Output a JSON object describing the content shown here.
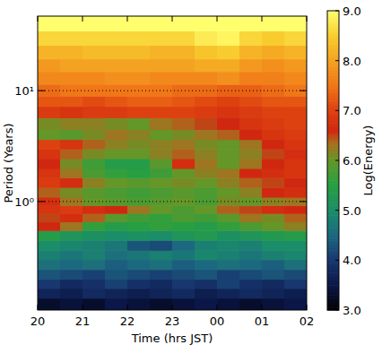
{
  "chart_data": {
    "type": "heatmap",
    "x_label": "Time (hrs JST)",
    "y_label": "Period (Years)",
    "x": [
      20.25,
      20.75,
      21.25,
      21.75,
      22.25,
      22.75,
      23.25,
      23.75,
      24.25,
      24.75,
      25.25,
      25.75
    ],
    "y": [
      0.12,
      0.15,
      0.18,
      0.22,
      0.27,
      0.33,
      0.4,
      0.5,
      0.6,
      0.72,
      0.85,
      1.0,
      1.2,
      1.5,
      1.8,
      2.2,
      2.7,
      3.3,
      4,
      5,
      6.5,
      8,
      10,
      13,
      17,
      22,
      30,
      40
    ],
    "values": [
      [
        3.3,
        3.4,
        3.3,
        3.5,
        3.4,
        3.3,
        3.4,
        3.5,
        3.4,
        3.3,
        3.4,
        3.5
      ],
      [
        3.7,
        3.6,
        3.8,
        3.7,
        3.6,
        3.7,
        3.8,
        3.6,
        3.7,
        3.8,
        3.7,
        3.6
      ],
      [
        4.0,
        3.8,
        3.9,
        4.1,
        3.9,
        3.8,
        4.0,
        3.9,
        4.1,
        3.9,
        3.8,
        4.0
      ],
      [
        4.3,
        4.2,
        4.1,
        4.3,
        4.2,
        4.1,
        4.2,
        4.3,
        4.1,
        4.2,
        4.3,
        4.2
      ],
      [
        4.6,
        4.5,
        4.6,
        4.4,
        4.5,
        4.6,
        4.4,
        4.5,
        4.6,
        4.5,
        4.4,
        4.6
      ],
      [
        4.8,
        4.7,
        4.8,
        4.6,
        4.7,
        4.8,
        4.7,
        4.9,
        4.8,
        4.7,
        4.8,
        4.9
      ],
      [
        5.0,
        4.9,
        4.8,
        4.7,
        4.3,
        4.2,
        4.5,
        4.8,
        4.9,
        4.8,
        5.0,
        5.0
      ],
      [
        5.4,
        5.2,
        5.1,
        5.0,
        5.1,
        5.0,
        5.2,
        5.3,
        5.1,
        5.2,
        5.3,
        5.4
      ],
      [
        6.6,
        6.3,
        5.6,
        5.4,
        5.5,
        5.6,
        5.5,
        5.4,
        5.6,
        5.8,
        6.0,
        6.2
      ],
      [
        6.5,
        6.7,
        6.4,
        5.9,
        5.7,
        5.6,
        5.8,
        5.7,
        5.9,
        6.3,
        6.1,
        6.4
      ],
      [
        6.8,
        6.9,
        6.7,
        6.6,
        6.3,
        6.0,
        5.8,
        6.0,
        6.4,
        6.5,
        6.7,
        6.6
      ],
      [
        6.7,
        6.3,
        6.0,
        5.9,
        5.8,
        5.9,
        6.0,
        5.8,
        6.1,
        6.0,
        6.2,
        6.3
      ],
      [
        6.4,
        6.1,
        5.9,
        5.8,
        5.7,
        5.8,
        5.9,
        5.8,
        6.0,
        6.2,
        6.6,
        6.7
      ],
      [
        6.9,
        6.7,
        6.2,
        6.0,
        5.9,
        6.0,
        6.1,
        6.0,
        6.2,
        6.4,
        6.5,
        6.6
      ],
      [
        6.8,
        6.3,
        5.8,
        5.6,
        5.5,
        5.7,
        6.0,
        6.2,
        6.3,
        6.6,
        6.7,
        6.8
      ],
      [
        6.6,
        6.1,
        5.7,
        5.4,
        5.4,
        5.9,
        6.7,
        6.3,
        6.0,
        6.3,
        6.6,
        6.8
      ],
      [
        6.8,
        6.4,
        6.1,
        6.0,
        6.0,
        6.2,
        6.4,
        6.2,
        6.0,
        6.2,
        6.5,
        6.7
      ],
      [
        7.0,
        6.8,
        6.4,
        6.2,
        6.1,
        6.2,
        6.3,
        6.1,
        6.0,
        6.3,
        6.6,
        6.8
      ],
      [
        6.0,
        5.9,
        6.1,
        6.3,
        6.2,
        6.0,
        6.1,
        6.3,
        6.4,
        6.6,
        6.8,
        6.9
      ],
      [
        6.1,
        6.2,
        6.2,
        6.1,
        6.0,
        6.3,
        6.4,
        6.5,
        6.6,
        6.8,
        6.9,
        7.0
      ],
      [
        6.9,
        6.8,
        6.9,
        6.9,
        7.0,
        7.0,
        7.0,
        6.9,
        6.8,
        6.9,
        7.0,
        7.0
      ],
      [
        7.2,
        7.2,
        7.1,
        7.2,
        7.3,
        7.3,
        7.2,
        7.1,
        7.0,
        7.1,
        7.2,
        7.2
      ],
      [
        7.4,
        7.5,
        7.5,
        7.5,
        7.5,
        7.5,
        7.4,
        7.4,
        7.3,
        7.3,
        7.4,
        7.5
      ],
      [
        7.7,
        7.7,
        7.7,
        7.8,
        7.8,
        7.7,
        7.7,
        7.7,
        7.8,
        7.6,
        7.6,
        7.7
      ],
      [
        7.9,
        8.0,
        8.0,
        8.0,
        8.0,
        8.0,
        8.0,
        8.1,
        8.1,
        7.9,
        7.8,
        7.9
      ],
      [
        8.2,
        8.2,
        8.3,
        8.3,
        8.3,
        8.2,
        8.2,
        8.4,
        8.5,
        8.2,
        8.1,
        8.2
      ],
      [
        8.6,
        8.6,
        8.6,
        8.6,
        8.6,
        8.6,
        8.6,
        8.8,
        8.9,
        8.6,
        8.5,
        8.6
      ],
      [
        9.0,
        9.0,
        9.0,
        9.0,
        9.0,
        9.0,
        9.0,
        9.0,
        9.0,
        9.0,
        9.0,
        9.0
      ]
    ],
    "xlim": [
      20,
      26
    ],
    "xticks": [
      20,
      21,
      22,
      23,
      {
        "value": 24,
        "label": "00"
      },
      {
        "value": 25,
        "label": "01"
      },
      {
        "value": 26,
        "label": "02"
      }
    ],
    "ylim": [
      0.105,
      47
    ],
    "yticks": [
      {
        "value": 1,
        "label": "10⁰"
      },
      {
        "value": 10,
        "label": "10¹"
      }
    ],
    "log": "y",
    "grid": "y",
    "colorbar": {
      "title": "Log(Energy)",
      "lim": [
        3,
        9
      ],
      "ticks": [
        {
          "value": 3,
          "label": "3.0"
        },
        {
          "value": 4,
          "label": "4.0"
        },
        {
          "value": 5,
          "label": "5.0"
        },
        {
          "value": 6,
          "label": "6.0"
        },
        {
          "value": 7,
          "label": "7.0"
        },
        {
          "value": 8,
          "label": "8.0"
        },
        {
          "value": 9,
          "label": "9.0"
        }
      ]
    }
  }
}
